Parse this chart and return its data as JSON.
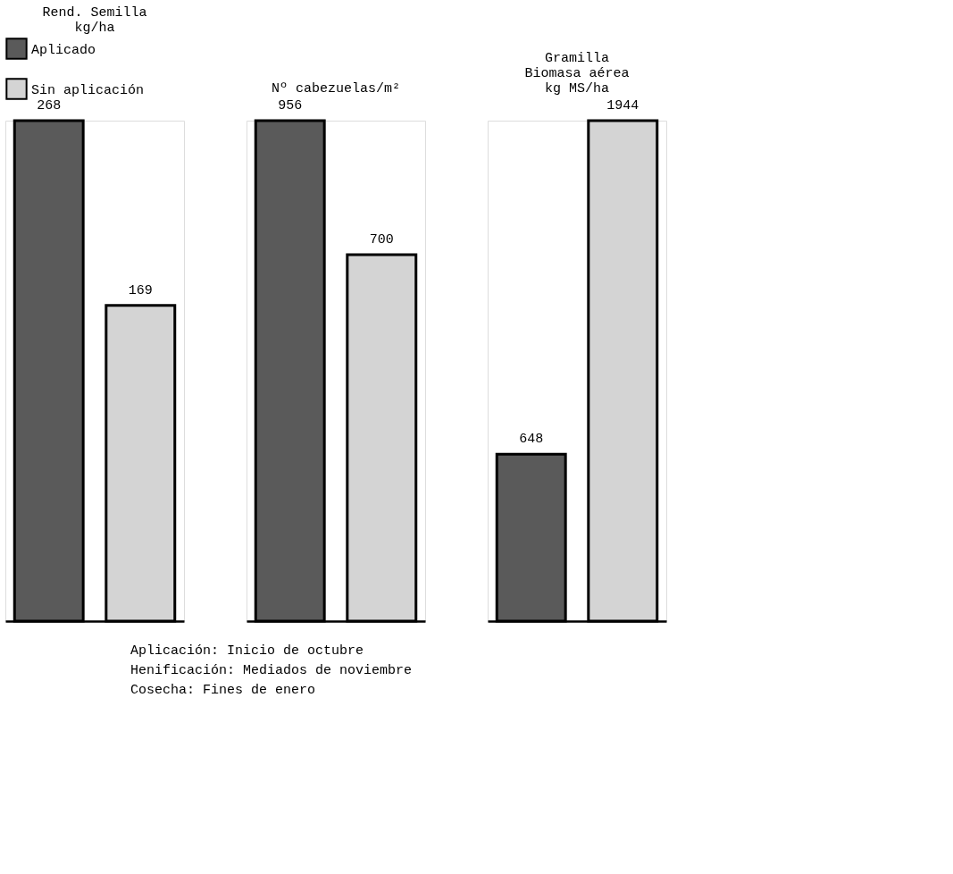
{
  "chart_data": [
    {
      "type": "bar",
      "title": "Rend. Semilla\nkg/ha",
      "categories": [
        null
      ],
      "data_labels": true,
      "legend": "top left",
      "series": [
        {
          "name": "Aplicado",
          "color": "#5a5a5a",
          "values": [
            268
          ]
        },
        {
          "name": "Sin aplicación",
          "color": "#d4d4d4",
          "values": [
            169
          ]
        }
      ]
    },
    {
      "type": "bar",
      "title": "Nº cabezuelas/m²",
      "categories": [
        null
      ],
      "data_labels": true,
      "annotations": [
        "Aplicación:     Inicio de octubre",
        "Henificación:   Mediados de noviembre",
        "Cosecha:        Fines de enero"
      ],
      "series": [
        {
          "color": "#5a5a5a",
          "values": [
            956
          ]
        },
        {
          "color": "#d4d4d4",
          "values": [
            700
          ]
        }
      ]
    },
    {
      "type": "bar",
      "title": "Gramilla\nBiomasa aérea\nkg MS/ha",
      "categories": [
        null
      ],
      "data_labels": true,
      "series": [
        {
          "color": "#5a5a5a",
          "values": [
            648
          ]
        },
        {
          "color": "#d4d4d4",
          "values": [
            1944
          ]
        }
      ]
    }
  ]
}
